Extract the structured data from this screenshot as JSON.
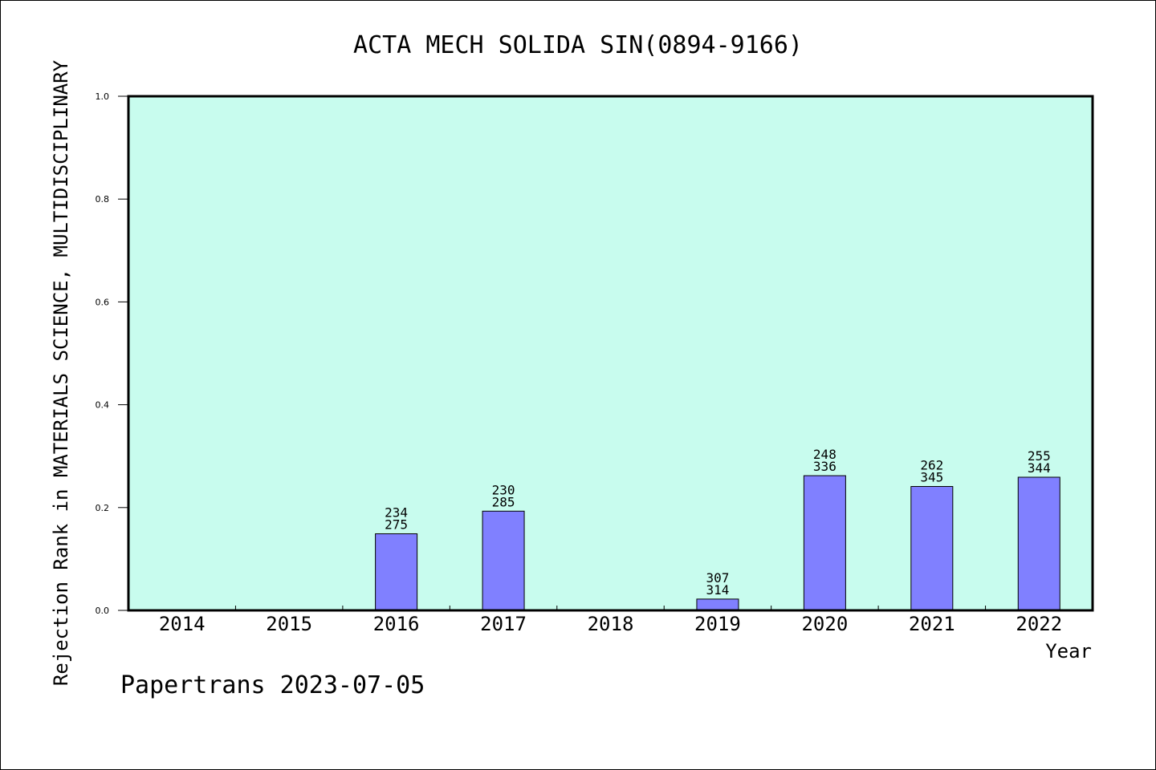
{
  "chart_data": {
    "type": "bar",
    "title": "ACTA MECH SOLIDA SIN(0894-9166)",
    "xlabel": "Year",
    "ylabel": "Rejection Rank in MATERIALS SCIENCE, MULTIDISCIPLINARY",
    "ylim": [
      0,
      1.0
    ],
    "yticks": [
      "0.0",
      "0.2",
      "0.4",
      "0.6",
      "0.8",
      "1.0"
    ],
    "categories": [
      "2014",
      "2015",
      "2016",
      "2017",
      "2018",
      "2019",
      "2020",
      "2021",
      "2022"
    ],
    "values": [
      null,
      null,
      0.149,
      0.193,
      null,
      0.022,
      0.262,
      0.241,
      0.259
    ],
    "labels_top": [
      "",
      "",
      "234",
      "230",
      "",
      "307",
      "248",
      "262",
      "255"
    ],
    "labels_bottom": [
      "",
      "",
      "275",
      "285",
      "",
      "314",
      "336",
      "345",
      "344"
    ],
    "colors": {
      "plot_bg": "#c8fcee",
      "bar": "#8080ff"
    }
  },
  "footer": "Papertrans 2023-07-05"
}
